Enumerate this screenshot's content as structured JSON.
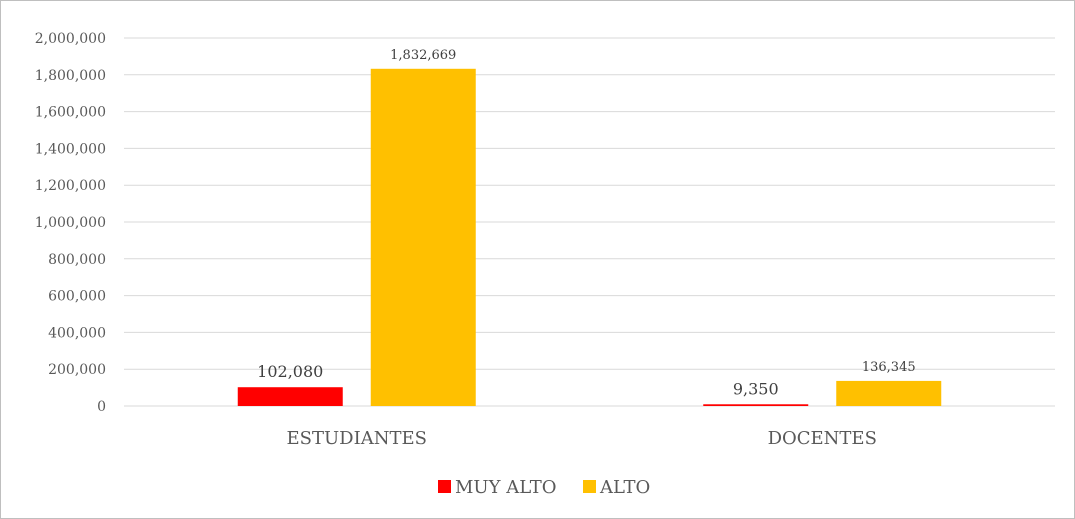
{
  "chart_data": {
    "type": "bar",
    "categories": [
      "ESTUDIANTES",
      "DOCENTES"
    ],
    "series": [
      {
        "name": "MUY ALTO",
        "values": [
          102080,
          9350
        ],
        "color": "#ff0000"
      },
      {
        "name": "ALTO",
        "values": [
          1832669,
          136345
        ],
        "color": "#ffc000"
      }
    ],
    "data_labels": [
      [
        "102,080",
        "9,350"
      ],
      [
        "1,832,669",
        "136,345"
      ]
    ],
    "y_ticks": [
      "0",
      "200,000",
      "400,000",
      "600,000",
      "800,000",
      "1,000,000",
      "1,200,000",
      "1,400,000",
      "1,600,000",
      "1,800,000",
      "2,000,000"
    ],
    "ylim": [
      0,
      2000000
    ],
    "grid": true,
    "legend": "bottom",
    "title": "",
    "xlabel": "",
    "ylabel": ""
  }
}
